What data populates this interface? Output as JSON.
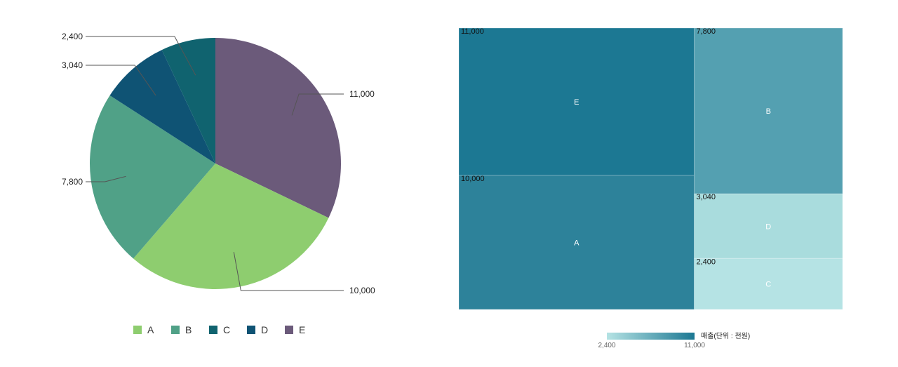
{
  "chart_data": [
    {
      "type": "pie",
      "categories": [
        "A",
        "B",
        "C",
        "D",
        "E"
      ],
      "values": [
        10000,
        7800,
        2400,
        3040,
        11000
      ],
      "value_labels": [
        "10,000",
        "7,800",
        "2,400",
        "3,040",
        "11,000"
      ],
      "colors": {
        "A": "#8ecd6f",
        "B": "#50a187",
        "C": "#10636f",
        "D": "#0f5374",
        "E": "#6b5a7a"
      },
      "slice_order": [
        "E",
        "A",
        "B",
        "D",
        "C"
      ],
      "legend": [
        "A",
        "B",
        "C",
        "D",
        "E"
      ],
      "legend_position": "bottom"
    },
    {
      "type": "treemap",
      "categories": [
        "E",
        "A",
        "B",
        "D",
        "C"
      ],
      "values": [
        11000,
        10000,
        7800,
        3040,
        2400
      ],
      "value_labels": [
        "11,000",
        "10,000",
        "7,800",
        "3,040",
        "2,400"
      ],
      "colors": {
        "E": "#1c7893",
        "A": "#2d829a",
        "B": "#54a0b1",
        "D": "#a9dcdd",
        "C": "#b5e3e4"
      },
      "color_scale": {
        "min_label": "2,400",
        "max_label": "11,000",
        "min_color": "#b5e3e4",
        "max_color": "#1c7893",
        "title": "매출(단위 : 천원)"
      }
    }
  ]
}
